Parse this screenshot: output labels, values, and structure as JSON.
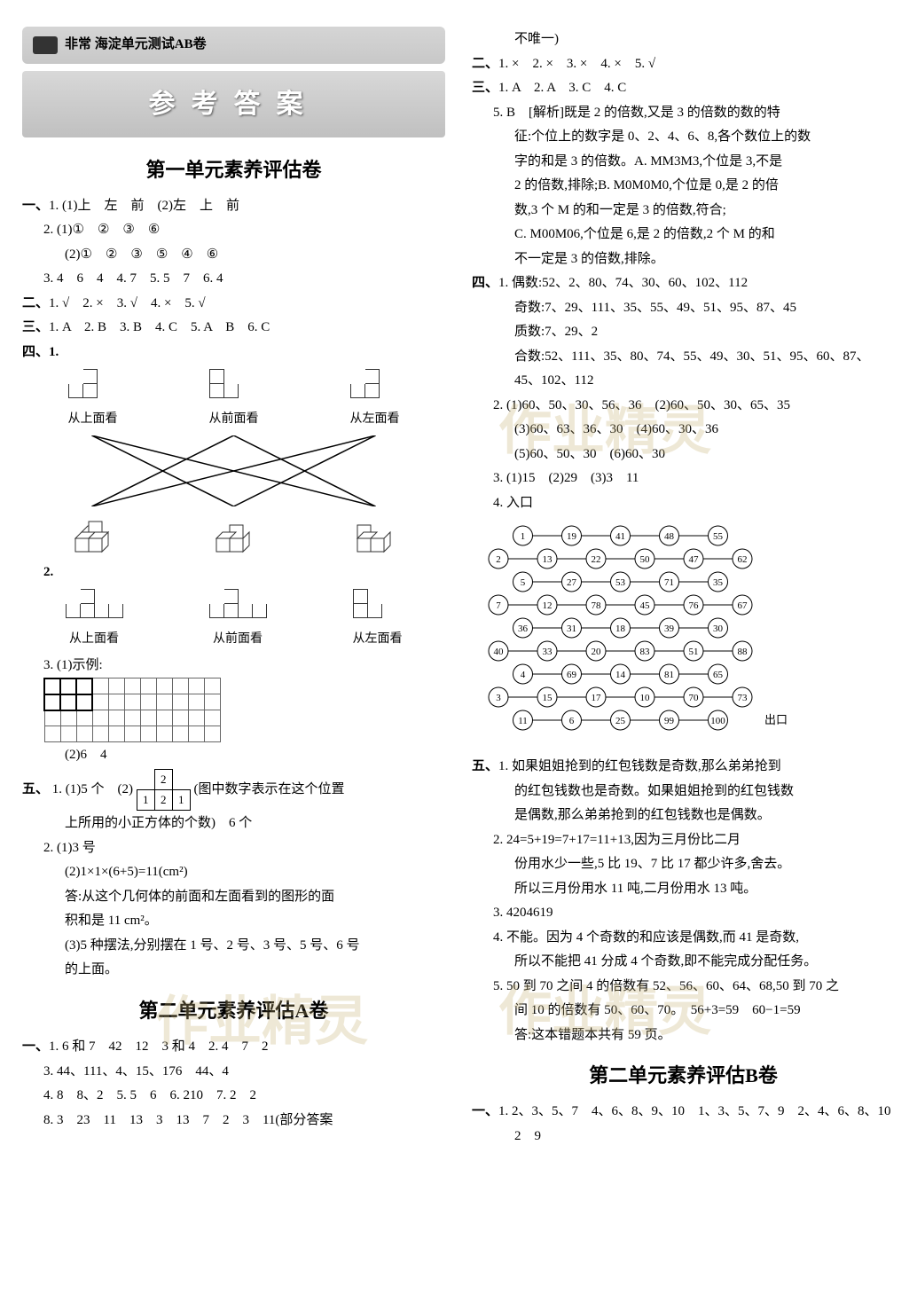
{
  "header": {
    "badge_text": "非常 海淀单元测试AB卷",
    "title": "参考答案"
  },
  "watermark_text": "作业精灵",
  "unit1": {
    "title": "第一单元素养评估卷",
    "s1": {
      "label": "一、",
      "q1": "1. (1)上　左　前　(2)左　上　前",
      "q2a": "2. (1)①　②　③　⑥",
      "q2b": "(2)①　②　③　⑤　④　⑥",
      "q3": "3. 4　6　4　4. 7　5. 5　7　6. 4"
    },
    "s2": {
      "label": "二、",
      "ans": "1. √　2. ×　3. √　4. ×　5. √"
    },
    "s3": {
      "label": "三、",
      "ans": "1. A　2. B　3. B　4. C　5. A　B　6. C"
    },
    "s4": {
      "label": "四、",
      "views": [
        "从上面看",
        "从前面看",
        "从左面看"
      ],
      "q3a": "3. (1)示例:",
      "q3b": "(2)6　4"
    },
    "s5": {
      "label": "五、",
      "q1a": "1. (1)5 个　(2)",
      "q1a_tail": "(图中数字表示在这个位置",
      "q1b": "上所用的小正方体的个数)　6 个",
      "q2a": "2. (1)3 号",
      "q2b": "(2)1×1×(6+5)=11(cm²)",
      "q2c": "答:从这个几何体的前面和左面看到的图形的面",
      "q2d": "积和是 11 cm²。",
      "q2e": "(3)5 种摆法,分别摆在 1 号、2 号、3 号、5 号、6 号",
      "q2f": "的上面。",
      "frac": [
        [
          "",
          "2",
          ""
        ],
        [
          "1",
          "2",
          "1"
        ]
      ]
    }
  },
  "unit2a": {
    "title": "第二单元素养评估A卷",
    "s1": {
      "label": "一、",
      "q1": "1. 6 和 7　42　12　3 和 4　2. 4　7　2",
      "q3": "3. 44、111、4、15、176　44、4",
      "q4": "4. 8　8、2　5. 5　6　6. 210　7. 2　2",
      "q8": "8. 3　23　11　13　3　13　7　2　3　11(部分答案",
      "q8b": "不唯一)"
    },
    "s2": {
      "label": "二、",
      "ans": "1. ×　2. ×　3. ×　4. ×　5. √"
    },
    "s3": {
      "label": "三、",
      "ans": "1. A　2. A　3. C　4. C",
      "q5a": "5. B　[解析]既是 2 的倍数,又是 3 的倍数的数的特",
      "q5b": "征:个位上的数字是 0、2、4、6、8,各个数位上的数",
      "q5c": "字的和是 3 的倍数。A. MM3M3,个位是 3,不是",
      "q5d": "2 的倍数,排除;B. M0M0M0,个位是 0,是 2 的倍",
      "q5e": "数,3 个 M 的和一定是 3 的倍数,符合;",
      "q5f": "C. M00M06,个位是 6,是 2 的倍数,2 个 M 的和",
      "q5g": "不一定是 3 的倍数,排除。"
    },
    "s4": {
      "label": "四、",
      "q1a": "1. 偶数:52、2、80、74、30、60、102、112",
      "q1b": "奇数:7、29、111、35、55、49、51、95、87、45",
      "q1c": "质数:7、29、2",
      "q1d": "合数:52、111、35、80、74、55、49、30、51、95、60、87、",
      "q1e": "45、102、112",
      "q2a": "2. (1)60、50、30、56、36　(2)60、50、30、65、35",
      "q2b": "(3)60、63、36、30　(4)60、30、36",
      "q2c": "(5)60、50、30　(6)60、30",
      "q3": "3. (1)15　(2)29　(3)3　11",
      "q4": "4. 入口",
      "q4_exit": "出口",
      "maze": [
        [
          "1",
          "19",
          "41",
          "48",
          "55"
        ],
        [
          "2",
          "13",
          "22",
          "50",
          "47",
          "62"
        ],
        [
          "5",
          "27",
          "53",
          "71",
          "35"
        ],
        [
          "7",
          "12",
          "78",
          "45",
          "76",
          "67"
        ],
        [
          "36",
          "31",
          "18",
          "39",
          "30"
        ],
        [
          "40",
          "33",
          "20",
          "83",
          "51",
          "88"
        ],
        [
          "4",
          "69",
          "14",
          "81",
          "65"
        ],
        [
          "3",
          "15",
          "17",
          "10",
          "70",
          "73"
        ],
        [
          "11",
          "6",
          "25",
          "99",
          "100"
        ]
      ]
    },
    "s5": {
      "label": "五、",
      "q1a": "1. 如果姐姐抢到的红包钱数是奇数,那么弟弟抢到",
      "q1b": "的红包钱数也是奇数。如果姐姐抢到的红包钱数",
      "q1c": "是偶数,那么弟弟抢到的红包钱数也是偶数。",
      "q2a": "2. 24=5+19=7+17=11+13,因为三月份比二月",
      "q2b": "份用水少一些,5 比 19、7 比 17 都少许多,舍去。",
      "q2c": "所以三月份用水 11 吨,二月份用水 13 吨。",
      "q3": "3. 4204619",
      "q4a": "4. 不能。因为 4 个奇数的和应该是偶数,而 41 是奇数,",
      "q4b": "所以不能把 41 分成 4 个奇数,即不能完成分配任务。",
      "q5a": "5. 50 到 70 之间 4 的倍数有 52、56、60、64、68,50 到 70 之",
      "q5b": "间 10 的倍数有 50、60、70。　56+3=59　60−1=59",
      "q5c": "答:这本错题本共有 59 页。"
    }
  },
  "unit2b": {
    "title": "第二单元素养评估B卷",
    "s1": {
      "label": "一、",
      "q1": "1. 2、3、5、7　4、6、8、9、10　1、3、5、7、9　2、4、6、8、10",
      "q1b": "2　9"
    }
  }
}
